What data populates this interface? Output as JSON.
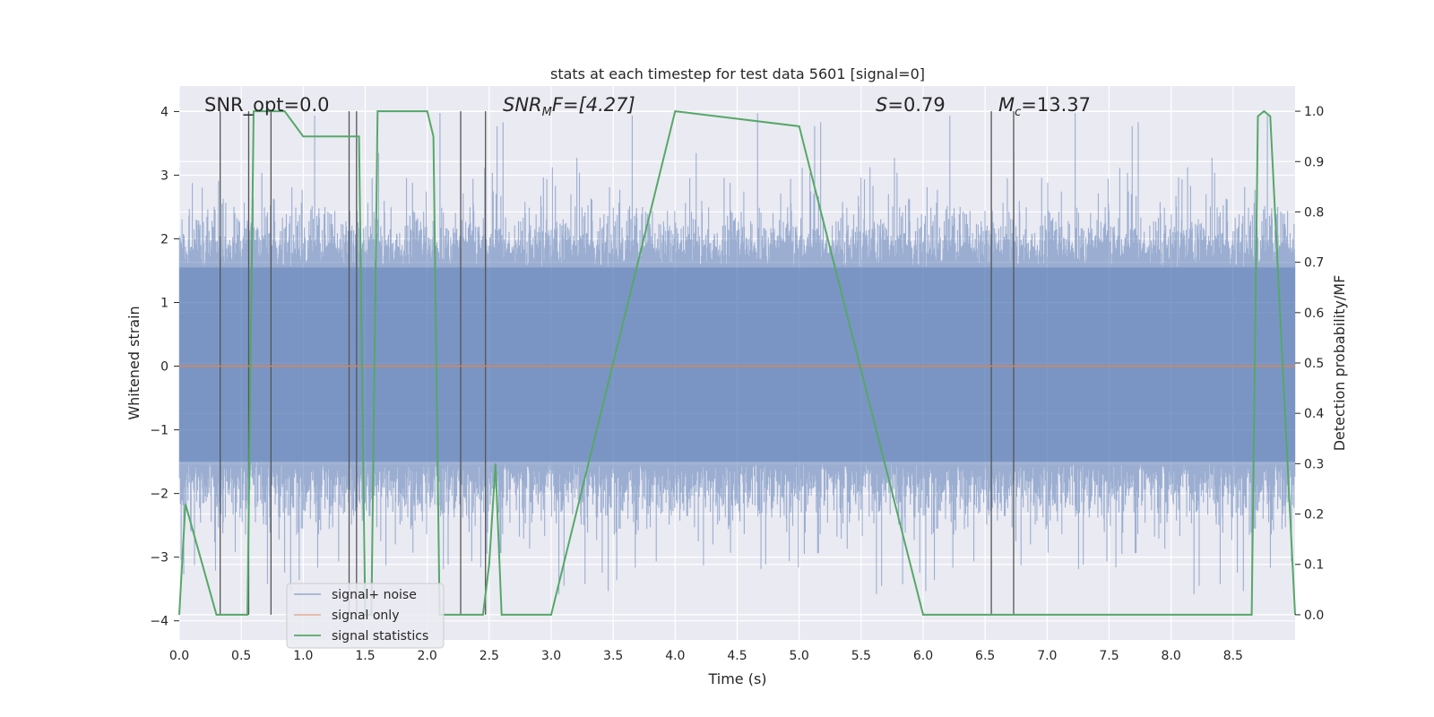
{
  "chart_data": {
    "type": "line",
    "title": "stats at each timestep for test data 5601 [signal=0]",
    "xlabel": "Time (s)",
    "ylabel": "Whitened strain",
    "y2label": "Detection probability/MF",
    "xlim": [
      0.0,
      9.0
    ],
    "ylim": [
      -4.3,
      4.4
    ],
    "y2lim": [
      -0.05,
      1.05
    ],
    "xticks": [
      "0.0",
      "0.5",
      "1.0",
      "1.5",
      "2.0",
      "2.5",
      "3.0",
      "3.5",
      "4.0",
      "4.5",
      "5.0",
      "5.5",
      "6.0",
      "6.5",
      "7.0",
      "7.5",
      "8.0",
      "8.5"
    ],
    "yticks": [
      "4",
      "3",
      "2",
      "1",
      "0",
      "−1",
      "−2",
      "−3",
      "−4"
    ],
    "y2ticks": [
      "1.0",
      "0.9",
      "0.8",
      "0.7",
      "0.6",
      "0.5",
      "0.4",
      "0.3",
      "0.2",
      "0.1",
      "0.0"
    ],
    "annotations": {
      "snr_opt": "SNR_opt=0.0",
      "snr_mf_sym": "SNR",
      "snr_mf_sub": "M",
      "snr_mf_rest": "F=[4.27]",
      "s_sym": "S",
      "s_rest": "=0.79",
      "mc_sym": "M",
      "mc_sub": "c",
      "mc_rest": "=13.37"
    },
    "legend_position": "lower-left",
    "series": [
      {
        "name": "signal+ noise",
        "color": "#4c72b0",
        "description": "whitened noisy strain, roughly bounded ±2.5 with peaks near ±4"
      },
      {
        "name": "signal only",
        "color": "#dd8452",
        "x": [
          0.0,
          9.0
        ],
        "y": [
          0.0,
          0.0
        ]
      },
      {
        "name": "signal statistics",
        "color": "#55a868",
        "axis": "right",
        "x": [
          0.0,
          0.05,
          0.3,
          0.5,
          0.55,
          0.6,
          0.65,
          0.85,
          1.0,
          1.45,
          1.5,
          1.55,
          1.6,
          1.65,
          1.7,
          1.75,
          2.0,
          2.05,
          2.1,
          2.45,
          2.5,
          2.55,
          2.6,
          2.65,
          2.7,
          2.75,
          2.8,
          3.0,
          4.0,
          5.0,
          6.0,
          6.5,
          6.85,
          6.9,
          6.95,
          7.0,
          7.05,
          7.1,
          7.15,
          7.5,
          8.0,
          8.5,
          8.55,
          8.6,
          8.65,
          8.7,
          8.75,
          8.8,
          9.0
        ],
        "y": [
          0.0,
          0.22,
          0.0,
          0.0,
          0.0,
          1.0,
          1.0,
          1.0,
          0.95,
          0.95,
          0.0,
          0.0,
          1.0,
          1.0,
          1.0,
          1.0,
          1.0,
          0.95,
          0.0,
          0.0,
          0.1,
          0.3,
          0.0,
          0.0,
          0.0,
          0.0,
          0.0,
          0.0,
          1.0,
          0.97,
          0.0,
          0.0,
          0.0,
          0.0,
          0.0,
          0.0,
          0.0,
          0.0,
          0.0,
          0.0,
          0.0,
          0.0,
          0.0,
          0.0,
          0.0,
          0.99,
          1.0,
          0.99,
          0.0
        ]
      }
    ],
    "vertical_markers": [
      0.33,
      0.56,
      0.74,
      1.37,
      1.43,
      2.27,
      2.47,
      6.55,
      6.73
    ]
  }
}
